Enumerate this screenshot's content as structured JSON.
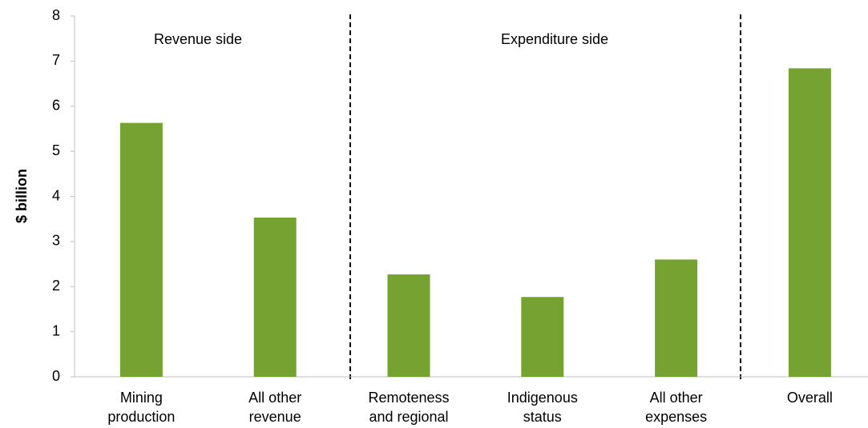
{
  "chart_data": {
    "type": "bar",
    "y_label": "$ billion",
    "annotations": [
      "Revenue side",
      "Expenditure side"
    ],
    "categories": [
      [
        "Mining",
        "production"
      ],
      [
        "All other",
        "revenue"
      ],
      [
        "Remoteness",
        "and regional"
      ],
      [
        "Indigenous",
        "status"
      ],
      [
        "All other",
        "expenses"
      ],
      [
        "Overall"
      ]
    ],
    "values": [
      5.63,
      3.53,
      2.27,
      1.77,
      2.6,
      6.84
    ],
    "color": "#76a232",
    "ylim": [
      0,
      8
    ],
    "yticks": [
      0,
      1,
      2,
      3,
      4,
      5,
      6,
      7,
      8
    ],
    "grid": false
  }
}
